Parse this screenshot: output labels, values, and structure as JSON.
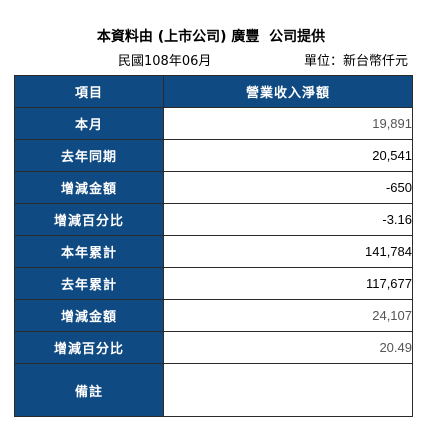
{
  "header": {
    "title": "本資料由 (上市公司) 廣豐  公司提供",
    "period": "民國108年06月",
    "unit": "單位：新台幣仟元"
  },
  "table": {
    "column_headers": [
      "項目",
      "營業收入淨額"
    ],
    "rows": [
      {
        "label": "本月",
        "value": "19,891"
      },
      {
        "label": "去年同期",
        "value": "20,541"
      },
      {
        "label": "增減金額",
        "value": "-650"
      },
      {
        "label": "增減百分比",
        "value": "-3.16"
      },
      {
        "label": "本年累計",
        "value": "141,784"
      },
      {
        "label": "去年累計",
        "value": "117,677"
      },
      {
        "label": "增減金額",
        "value": "24,107"
      },
      {
        "label": "增減百分比",
        "value": "20.49"
      }
    ],
    "note_label": "備註",
    "note_value": ""
  },
  "colors": {
    "header_fill": "#0f4a82",
    "header_text": "#ffffff"
  }
}
